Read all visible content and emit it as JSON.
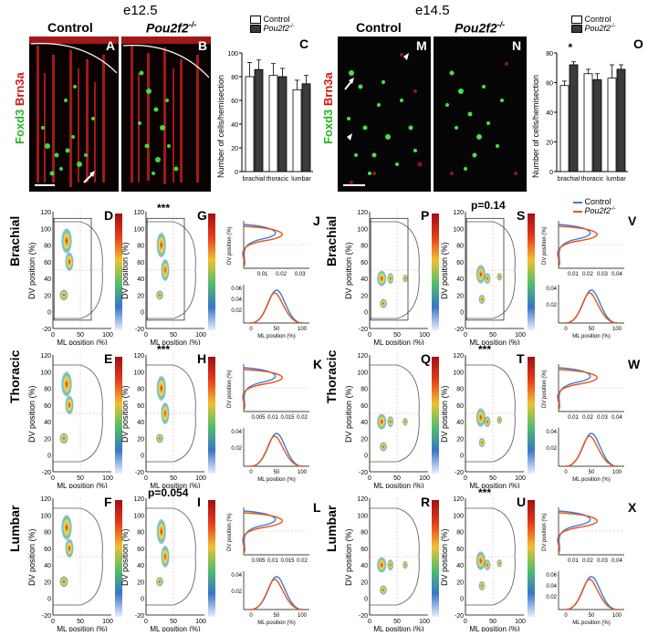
{
  "stages": {
    "e125": "e12.5",
    "e145": "e14.5"
  },
  "genotypes": {
    "control": "Control",
    "mutant": "Pou2f2",
    "mutant_sup": "-/-"
  },
  "stain": {
    "foxd3": "Foxd3",
    "brn3a": "Brn3a"
  },
  "panel_letters": {
    "A": "A",
    "B": "B",
    "C": "C",
    "D": "D",
    "E": "E",
    "F": "F",
    "G": "G",
    "H": "H",
    "I": "I",
    "J": "J",
    "K": "K",
    "L": "L",
    "M": "M",
    "N": "N",
    "O": "O",
    "P": "P",
    "Q": "Q",
    "R": "R",
    "S": "S",
    "T": "T",
    "U": "U",
    "V": "V",
    "W": "W",
    "X": "X"
  },
  "row_labels": {
    "brachial": "Brachial",
    "thoracic": "Thoracic",
    "lumbar": "Lumbar"
  },
  "axis_labels": {
    "dv": "DV position (%)",
    "ml": "ML position (%)",
    "cells": "Number of cells/hemisection"
  },
  "significance": {
    "G": "***",
    "H": "***",
    "I": "p=0.054",
    "S": "p=0.14",
    "T": "***",
    "U": "***",
    "O_star": "*"
  },
  "legend": {
    "control": "Control",
    "mutant": "Pou2f2",
    "mutant_sup": "-/-"
  },
  "colors": {
    "control_bar": "#ffffff",
    "mutant_bar": "#3b3b3b",
    "control_line": "#3a7bd5",
    "mutant_line": "#e8561e",
    "foxd3": "#2ec62e",
    "brn3a": "#e02020"
  },
  "chart_data": [
    {
      "panel": "C",
      "type": "bar",
      "categories": [
        "brachial",
        "thoracic",
        "lumbar"
      ],
      "series": [
        {
          "name": "Control",
          "values": [
            80,
            81,
            69
          ],
          "errors": [
            12,
            10,
            8
          ]
        },
        {
          "name": "Pou2f2-/-",
          "values": [
            86,
            80,
            74
          ],
          "errors": [
            8,
            7,
            7
          ]
        }
      ],
      "ylabel": "Number of cells/hemisection",
      "ylim": [
        0,
        100
      ],
      "yticks": [
        0,
        20,
        40,
        60,
        80,
        100
      ],
      "legend": "top"
    },
    {
      "panel": "O",
      "type": "bar",
      "categories": [
        "brachial",
        "thoracic",
        "lumbar"
      ],
      "series": [
        {
          "name": "Control",
          "values": [
            58,
            66,
            63
          ],
          "errors": [
            3,
            3,
            9
          ]
        },
        {
          "name": "Pou2f2-/-",
          "values": [
            72,
            62,
            69
          ],
          "errors": [
            2,
            4,
            3
          ]
        }
      ],
      "ylabel": "Number of cells/hemisection",
      "ylim": [
        0,
        80
      ],
      "yticks": [
        0,
        20,
        40,
        60,
        80
      ],
      "legend": "top",
      "annotations": [
        "*"
      ]
    }
  ],
  "heatmap_axes": {
    "yticks": [
      "120",
      "100",
      "80",
      "60",
      "40",
      "20",
      "0",
      "-20"
    ],
    "xticks": [
      "0",
      "50",
      "100"
    ]
  },
  "profile_axes": {
    "J": {
      "dv_x": [
        "0.01",
        "0.02",
        "0.03"
      ],
      "ml_y": [
        "0.06",
        "0.04",
        "0.02"
      ],
      "ml_x": [
        "0",
        "50",
        "100"
      ]
    },
    "K": {
      "dv_x": [
        "0.005",
        "0.01",
        "0.015",
        "0.02"
      ],
      "ml_y": [
        "0.04",
        "0.02"
      ],
      "ml_x": [
        "0",
        "50",
        "100"
      ]
    },
    "L": {
      "dv_x": [
        "0.005",
        "0.01",
        "0.015",
        "0.02"
      ],
      "ml_y": [
        "0.04",
        "0.02"
      ],
      "ml_x": [
        "0",
        "50",
        "100"
      ]
    },
    "V": {
      "dv_x": [
        "0.01",
        "0.02",
        "0.03",
        "0.04"
      ],
      "ml_y": [
        "0.04",
        "0.02"
      ],
      "ml_x": [
        "0",
        "50",
        "100"
      ]
    },
    "W": {
      "dv_x": [
        "0.01",
        "0.02",
        "0.03",
        "0.04"
      ],
      "ml_y": [
        "0.04",
        "0.02"
      ],
      "ml_x": [
        "0",
        "50",
        "100"
      ]
    },
    "X": {
      "dv_x": [
        "0.01",
        "0.02",
        "0.03",
        "0.04"
      ],
      "ml_y": [
        "0.06",
        "0.04",
        "0.02"
      ],
      "ml_x": [
        "0",
        "50",
        "100"
      ]
    }
  }
}
